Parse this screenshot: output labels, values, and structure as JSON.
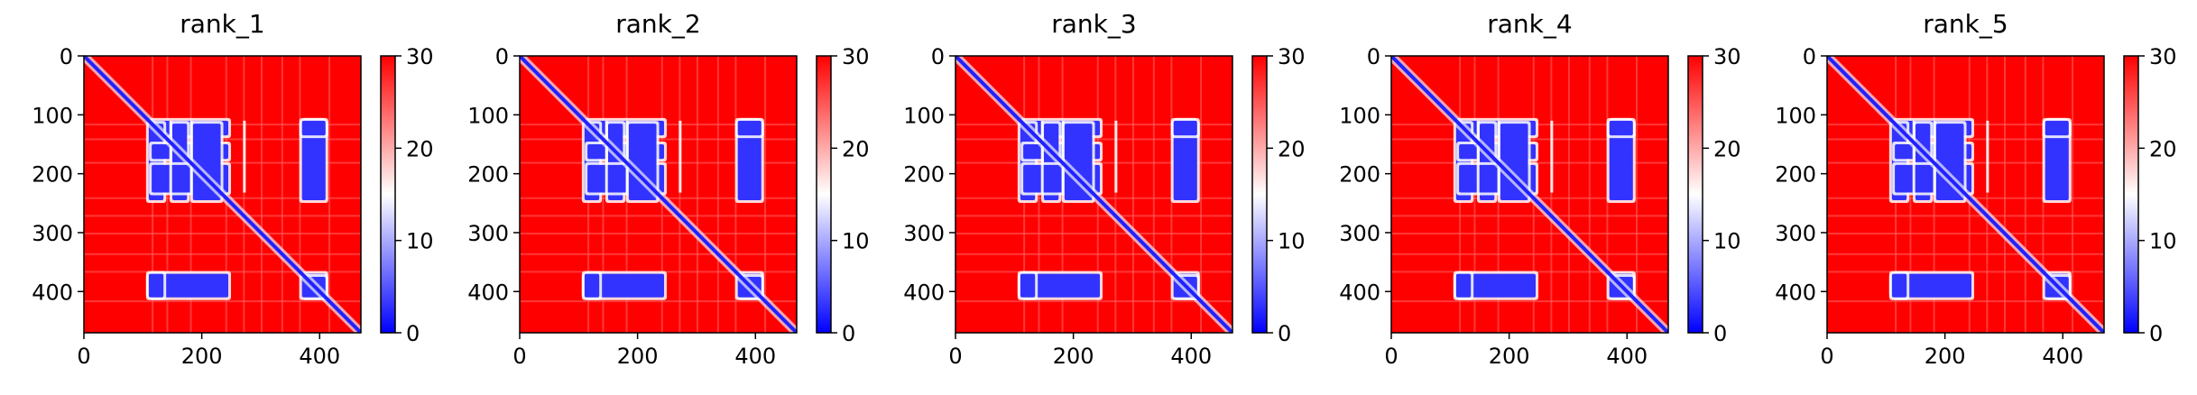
{
  "chart_data": {
    "type": "heatmap",
    "colormap": "bwr",
    "colorbar": {
      "ticks": [
        0,
        10,
        20,
        30
      ],
      "range": [
        0,
        30
      ]
    },
    "x_ticks": [
      0,
      200,
      400
    ],
    "y_ticks": [
      0,
      100,
      200,
      300,
      400
    ],
    "matrix_size": 470,
    "grid": false,
    "panels": [
      {
        "title": "rank_1"
      },
      {
        "title": "rank_2"
      },
      {
        "title": "rank_3"
      },
      {
        "title": "rank_4"
      },
      {
        "title": "rank_5"
      }
    ],
    "structure": {
      "diagonal_value": 2,
      "background_value": 30,
      "low_value_blocks": [
        {
          "x_range": [
            115,
            245
          ],
          "y_range": [
            110,
            135
          ]
        },
        {
          "x_range": [
            115,
            245
          ],
          "y_range": [
            150,
            175
          ]
        },
        {
          "x_range": [
            115,
            245
          ],
          "y_range": [
            185,
            232
          ]
        },
        {
          "x_range": [
            375,
            405
          ],
          "y_range": [
            110,
            135
          ]
        },
        {
          "x_range": [
            375,
            405
          ],
          "y_range": [
            150,
            175
          ]
        },
        {
          "x_range": [
            375,
            405
          ],
          "y_range": [
            185,
            232
          ]
        },
        {
          "x_range": [
            115,
            245
          ],
          "y_range": [
            370,
            410
          ]
        },
        {
          "x_range": [
            110,
            135
          ],
          "y_range": [
            370,
            410
          ]
        },
        {
          "x_range": [
            375,
            410
          ],
          "y_range": [
            370,
            410
          ]
        }
      ]
    }
  }
}
